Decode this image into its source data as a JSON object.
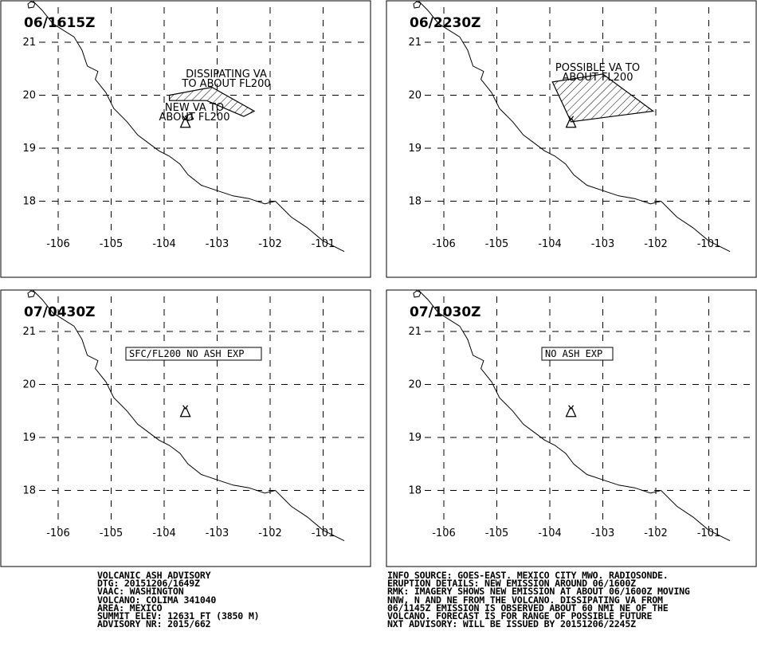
{
  "map": {
    "lon_ticks": [
      "-106",
      "-105",
      "-104",
      "-103",
      "-102",
      "-101"
    ],
    "lat_ticks": [
      "21",
      "20",
      "19",
      "18"
    ],
    "volcano": {
      "name": "COLIMA",
      "lat": 19.5,
      "lon": -103.6
    },
    "panels": [
      {
        "time": "06/1615Z",
        "areas": [
          {
            "label": [
              "DISSIPATING VA",
              "TO ABOUT FL200"
            ],
            "polygon": [
              [
                -103.9,
                20.0
              ],
              [
                -103.1,
                20.15
              ],
              [
                -102.3,
                19.7
              ],
              [
                -102.5,
                19.6
              ],
              [
                -103.2,
                19.9
              ],
              [
                -103.9,
                19.9
              ]
            ]
          },
          {
            "label": [
              "NEW VA TO",
              "ABOUT FL200"
            ],
            "polygon": [
              [
                -103.6,
                19.6
              ],
              [
                -103.5,
                19.65
              ],
              [
                -103.45,
                19.55
              ],
              [
                -103.55,
                19.52
              ]
            ]
          }
        ],
        "box_label": ""
      },
      {
        "time": "06/2230Z",
        "areas": [
          {
            "label": [
              "POSSIBLE VA TO",
              "ABOUT FL200"
            ],
            "polygon": [
              [
                -103.95,
                20.25
              ],
              [
                -103.0,
                20.4
              ],
              [
                -102.05,
                19.7
              ],
              [
                -103.6,
                19.5
              ]
            ]
          }
        ],
        "box_label": ""
      },
      {
        "time": "07/0430Z",
        "areas": [],
        "box_label": "SFC/FL200 NO ASH EXP"
      },
      {
        "time": "07/1030Z",
        "areas": [],
        "box_label": "NO ASH EXP"
      }
    ]
  },
  "advisory_left": [
    "VOLCANIC ASH ADVISORY",
    "DTG: 20151206/1649Z",
    "VAAC: WASHINGTON",
    "VOLCANO: COLIMA 341040",
    "AREA: MEXICO",
    "SUMMIT ELEV: 12631 FT (3850 M)",
    "ADVISORY NR: 2015/662"
  ],
  "advisory_right": [
    "INFO SOURCE: GOES-EAST. MEXICO CITY MWO. RADIOSONDE.",
    "ERUPTION DETAILS: NEW EMISSION AROUND 06/1600Z",
    "RMK: IMAGERY SHOWS NEW EMISSION AT ABOUT 06/1600Z MOVING",
    "NNW, N AND NE FROM THE VOLCANO. DISSIPATING VA FROM",
    "06/1145Z EMISSION IS OBSERVED ABOUT 60 NMI NE OF THE",
    "VOLCANO. FORECAST IS FOR RANGE OF POSSIBLE FUTURE",
    "NXT ADVISORY: WILL BE ISSUED BY 20151206/2245Z"
  ]
}
